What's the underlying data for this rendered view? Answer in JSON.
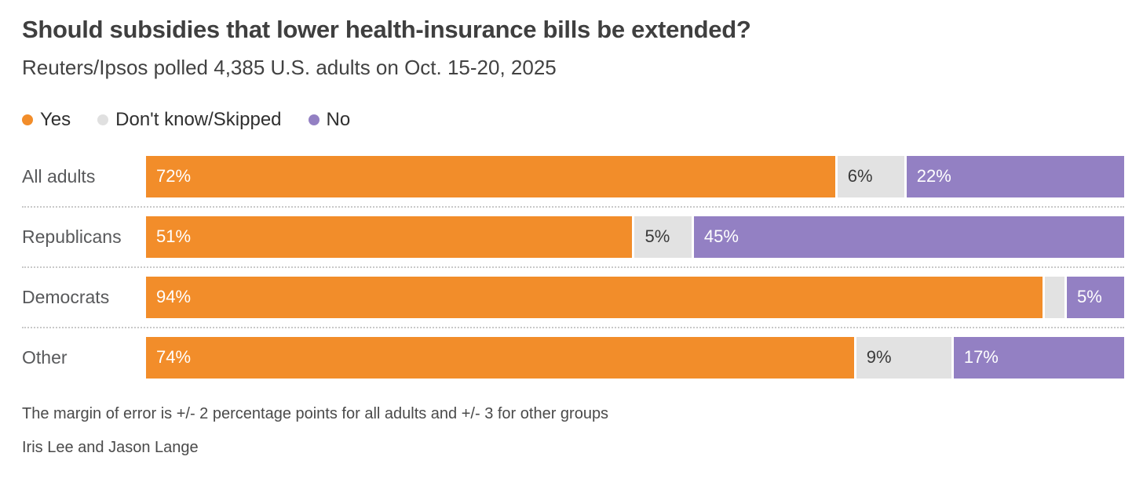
{
  "title": "Should subsidies that lower health-insurance bills be extended?",
  "subtitle": "Reuters/Ipsos polled 4,385 U.S. adults on Oct. 15-20, 2025",
  "legend": [
    {
      "label": "Yes",
      "color": "#F28D2A"
    },
    {
      "label": "Don't know/Skipped",
      "color": "#E0E0E0"
    },
    {
      "label": "No",
      "color": "#9380C3"
    }
  ],
  "chart_data": {
    "type": "bar",
    "orientation": "horizontal",
    "stacked": true,
    "grid": false,
    "legend_position": "top",
    "xlim": [
      0,
      100
    ],
    "unit": "%",
    "categories": [
      "All adults",
      "Republicans",
      "Democrats",
      "Other"
    ],
    "series": [
      {
        "name": "Yes",
        "color": "#F28D2A",
        "text_color": "#FFFFFF",
        "values": [
          72,
          51,
          94,
          74
        ]
      },
      {
        "name": "Don't know/Skipped",
        "color": "#E2E2E2",
        "text_color": "#3A3A3A",
        "values": [
          6,
          5,
          1,
          9
        ]
      },
      {
        "name": "No",
        "color": "#9380C3",
        "text_color": "#FFFFFF",
        "values": [
          22,
          45,
          5,
          17
        ]
      }
    ],
    "segment_labels": [
      [
        "72%",
        "6%",
        "22%"
      ],
      [
        "51%",
        "5%",
        "45%"
      ],
      [
        "94%",
        "",
        "5%"
      ],
      [
        "74%",
        "9%",
        "17%"
      ]
    ]
  },
  "footnote": "The margin of error is +/- 2 percentage points for all adults and +/- 3 for other groups",
  "byline": "Iris Lee and Jason Lange"
}
